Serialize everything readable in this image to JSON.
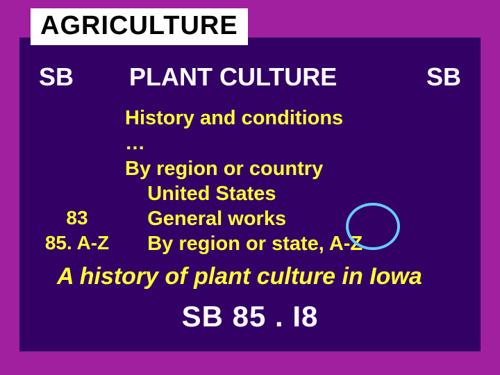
{
  "title": "AGRICULTURE",
  "class_left": "SB",
  "class_right": "SB",
  "section": "PLANT CULTURE",
  "lines": {
    "l1": "History and conditions",
    "l2": "…",
    "l3": "By region or country",
    "l4": "    United States",
    "l5": "    General works",
    "l6": "    By region or state, A-Z"
  },
  "numbers": {
    "n1": "83",
    "n2": "85. A-Z"
  },
  "example_title": "A history of plant culture in Iowa",
  "callno": "SB 85 . I8",
  "colors": {
    "outer": "#a020a0",
    "inner": "#330066",
    "title_bg": "#ffffff",
    "title_fg": "#000000",
    "white": "#ffffff",
    "yellow": "#ffff33",
    "circle": "#66ccff"
  }
}
